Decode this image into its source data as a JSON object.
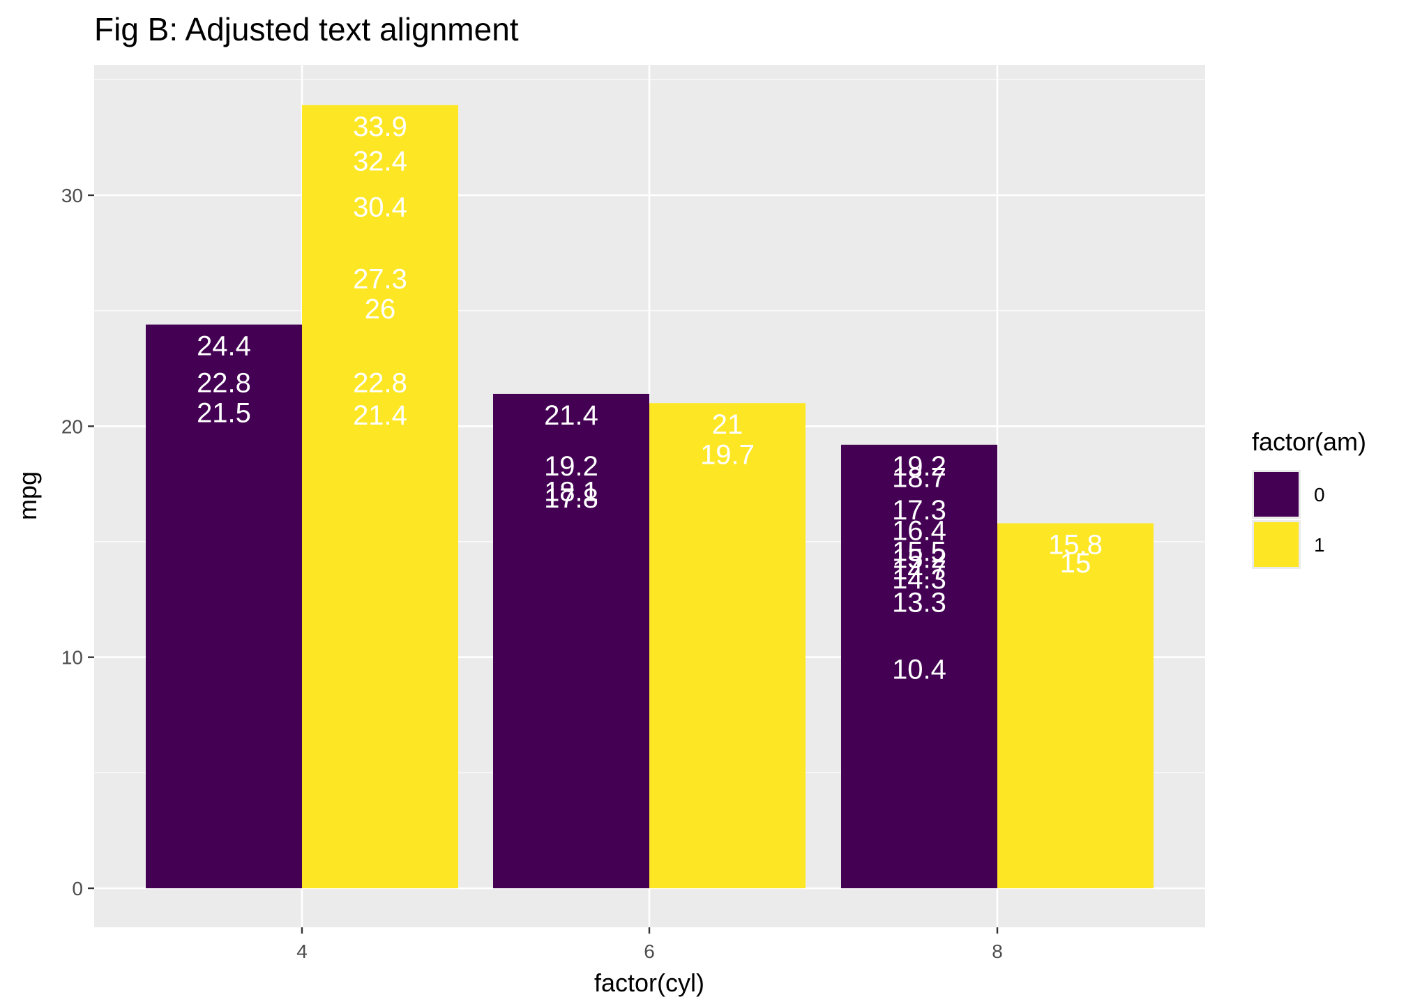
{
  "chart_data": {
    "type": "bar",
    "title": "Fig B: Adjusted text alignment",
    "xlabel": "factor(cyl)",
    "ylabel": "mpg",
    "categories": [
      "4",
      "6",
      "8"
    ],
    "yticks": [
      0,
      10,
      20,
      30
    ],
    "ylim": [
      -1.7,
      35.6
    ],
    "grid": true,
    "legend": {
      "title": "factor(am)",
      "position": "right",
      "entries": [
        {
          "label": "0",
          "color": "#440154"
        },
        {
          "label": "1",
          "color": "#FDE725"
        }
      ]
    },
    "series": [
      {
        "color": "#440154",
        "values": [
          24.4,
          21.4,
          19.2
        ],
        "labels": [
          [
            24.4,
            22.8,
            21.5
          ],
          [
            21.4,
            19.2,
            18.1,
            17.8
          ],
          [
            19.2,
            18.7,
            17.3,
            16.4,
            15.5,
            15.2,
            14.7,
            14.3,
            13.3,
            10.4
          ]
        ]
      },
      {
        "color": "#FDE725",
        "values": [
          33.9,
          21.0,
          15.8
        ],
        "labels": [
          [
            33.9,
            32.4,
            30.4,
            27.3,
            26,
            22.8,
            21.4
          ],
          [
            21,
            19.7
          ],
          [
            15.8,
            15
          ]
        ]
      }
    ]
  }
}
